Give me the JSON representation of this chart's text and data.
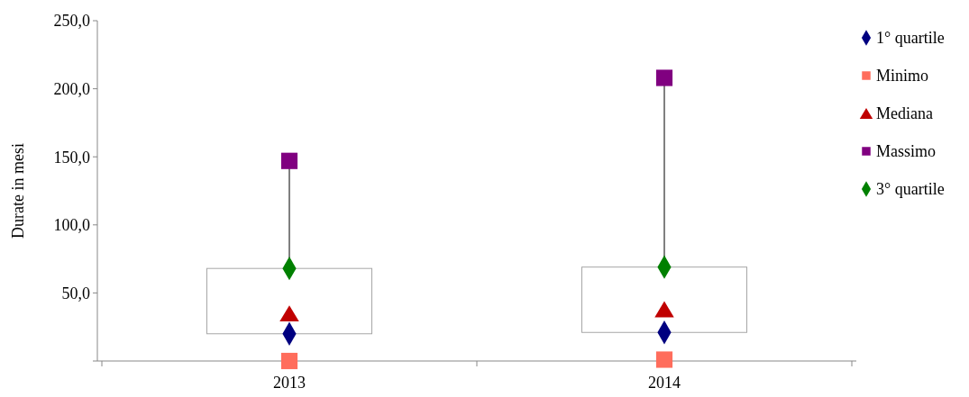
{
  "chart_data": {
    "type": "scatter",
    "ylabel": "Durate in mesi",
    "categories": [
      "2013",
      "2014"
    ],
    "ylim": [
      0,
      250
    ],
    "yticks": [
      {
        "value": 0,
        "label": null
      },
      {
        "value": 50,
        "label": "50,0"
      },
      {
        "value": 100,
        "label": "100,0"
      },
      {
        "value": 150,
        "label": "150,0"
      },
      {
        "value": 200,
        "label": "200,0"
      },
      {
        "value": 250,
        "label": "250,0"
      }
    ],
    "grid": false,
    "legend": "right",
    "series": [
      {
        "type": "box",
        "color": "#a6a6a6",
        "boxes": [
          {
            "q1": 20,
            "q3": 68,
            "high": 147
          },
          {
            "q1": 21,
            "q3": 69,
            "high": 208
          }
        ]
      },
      {
        "name": "1° quartile",
        "color": "#000080",
        "marker": "diamond",
        "values": [
          20,
          21
        ]
      },
      {
        "name": "Minimo",
        "color": "#ff6d5c",
        "marker": "square",
        "values": [
          0,
          1
        ]
      },
      {
        "name": "Mediana",
        "color": "#c00000",
        "marker": "triangle",
        "values": [
          35,
          38
        ]
      },
      {
        "name": "Massimo",
        "color": "#800080",
        "marker": "square",
        "values": [
          147,
          208
        ]
      },
      {
        "name": "3° quartile",
        "color": "#008000",
        "marker": "diamond",
        "values": [
          68,
          69
        ]
      }
    ]
  }
}
